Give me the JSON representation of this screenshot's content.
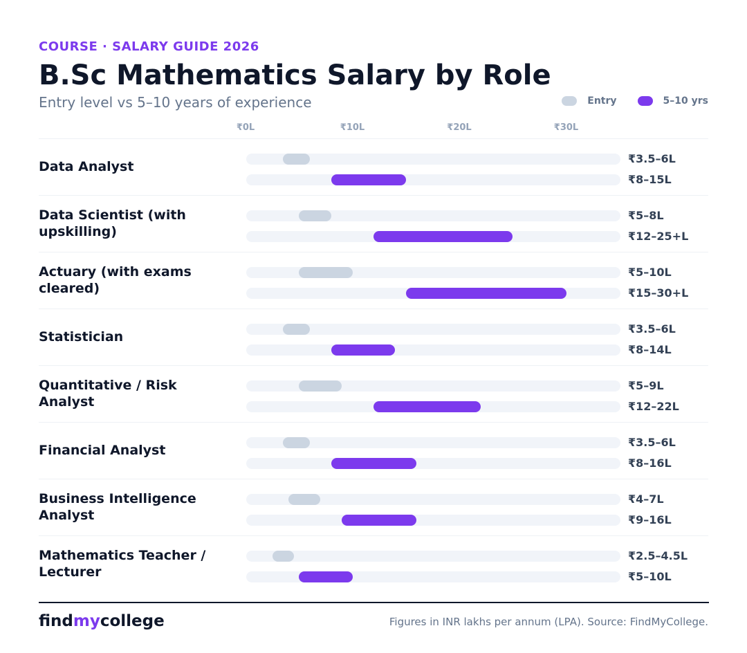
{
  "header": {
    "eyebrow": "COURSE · SALARY GUIDE 2026",
    "title": "B.Sc Mathematics Salary by Role",
    "subtitle": "Entry level vs 5–10 years of experience"
  },
  "legend": {
    "entry_label": "Entry",
    "senior_label": "5–10 yrs"
  },
  "colors": {
    "accent": "#7c3aed",
    "entry_bar": "#cbd5e1",
    "senior_bar": "#7c3aed",
    "track": "#f1f4f9"
  },
  "chart_data": {
    "type": "bar",
    "orientation": "horizontal-range",
    "axis_ticks": [
      "₹0L",
      "₹10L",
      "₹20L",
      "₹30L"
    ],
    "xlim": [
      0,
      35
    ],
    "series": [
      {
        "name": "Entry"
      },
      {
        "name": "5–10 yrs"
      }
    ],
    "rows": [
      {
        "role": "Data Analyst",
        "entry": [
          3.5,
          6
        ],
        "entry_label": "₹3.5–6L",
        "senior": [
          8,
          15
        ],
        "senior_label": "₹8–15L"
      },
      {
        "role": "Data Scientist (with upskilling)",
        "entry": [
          5,
          8
        ],
        "entry_label": "₹5–8L",
        "senior": [
          12,
          25
        ],
        "senior_label": "₹12–25+L"
      },
      {
        "role": "Actuary (with exams cleared)",
        "entry": [
          5,
          10
        ],
        "entry_label": "₹5–10L",
        "senior": [
          15,
          30
        ],
        "senior_label": "₹15–30+L"
      },
      {
        "role": "Statistician",
        "entry": [
          3.5,
          6
        ],
        "entry_label": "₹3.5–6L",
        "senior": [
          8,
          14
        ],
        "senior_label": "₹8–14L"
      },
      {
        "role": "Quantitative / Risk Analyst",
        "entry": [
          5,
          9
        ],
        "entry_label": "₹5–9L",
        "senior": [
          12,
          22
        ],
        "senior_label": "₹12–22L"
      },
      {
        "role": "Financial Analyst",
        "entry": [
          3.5,
          6
        ],
        "entry_label": "₹3.5–6L",
        "senior": [
          8,
          16
        ],
        "senior_label": "₹8–16L"
      },
      {
        "role": "Business Intelligence Analyst",
        "entry": [
          4,
          7
        ],
        "entry_label": "₹4–7L",
        "senior": [
          9,
          16
        ],
        "senior_label": "₹9–16L"
      },
      {
        "role": "Mathematics Teacher / Lecturer",
        "entry": [
          2.5,
          4.5
        ],
        "entry_label": "₹2.5–4.5L",
        "senior": [
          5,
          10
        ],
        "senior_label": "₹5–10L"
      }
    ]
  },
  "footer": {
    "brand_find": "find",
    "brand_my": "my",
    "brand_college": "college",
    "source": "Figures in INR lakhs per annum (LPA). Source: FindMyCollege."
  }
}
